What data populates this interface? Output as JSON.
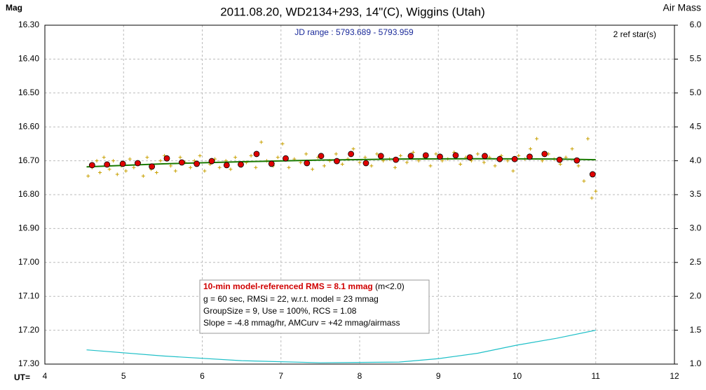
{
  "chart_data": {
    "type": "scatter",
    "title": "2011.08.20, WD2134+293, 14\"(C), Wiggins (Utah)",
    "y_label": "Mag",
    "y2_label": "Air Mass",
    "x_label": "UT=",
    "jd_range": "JD range : 5793.689 - 5793.959",
    "ref_stars": "2 ref star(s)",
    "stats_title": "10-min model-referenced RMS = 8.1 mmag",
    "stats_note": "(m<2.0)",
    "stats_lines": [
      "g = 60 sec, RMSi = 22, w.r.t. model = 23 mmag",
      "GroupSize = 9, Use = 100%, RCS = 1.08",
      "Slope = -4.8 mmag/hr, AMCurv = +42 mmag/airmass"
    ],
    "xlim": [
      4,
      12
    ],
    "xticks": [
      4,
      5,
      6,
      7,
      8,
      9,
      10,
      11,
      12
    ],
    "ylim": [
      16.3,
      17.3
    ],
    "y_inverted": true,
    "yticks": [
      {
        "value": 16.3,
        "label": "16.30"
      },
      {
        "value": 16.4,
        "label": "16.40"
      },
      {
        "value": 16.5,
        "label": "16.50"
      },
      {
        "value": 16.6,
        "label": "16.60"
      },
      {
        "value": 16.7,
        "label": "16.70"
      },
      {
        "value": 16.8,
        "label": "16.80"
      },
      {
        "value": 16.9,
        "label": "16.90"
      },
      {
        "value": 17.0,
        "label": "17.00"
      },
      {
        "value": 17.1,
        "label": "17.10"
      },
      {
        "value": 17.2,
        "label": "17.20"
      },
      {
        "value": 17.3,
        "label": "17.30"
      }
    ],
    "y2lim": [
      1.0,
      6.0
    ],
    "y2ticks": [
      {
        "value": 1.0,
        "label": "1.0"
      },
      {
        "value": 1.5,
        "label": "1.5"
      },
      {
        "value": 2.0,
        "label": "2.0"
      },
      {
        "value": 2.5,
        "label": "2.5"
      },
      {
        "value": 3.0,
        "label": "3.0"
      },
      {
        "value": 3.5,
        "label": "3.5"
      },
      {
        "value": 4.0,
        "label": "4.0"
      },
      {
        "value": 4.5,
        "label": "4.5"
      },
      {
        "value": 5.0,
        "label": "5.0"
      },
      {
        "value": 5.5,
        "label": "5.5"
      },
      {
        "value": 6.0,
        "label": "6.0"
      }
    ],
    "grid": true,
    "series": [
      {
        "marker": "plus",
        "color": "#c8a000",
        "x": [
          4.55,
          4.6,
          4.66,
          4.7,
          4.75,
          4.82,
          4.87,
          4.92,
          4.97,
          5.03,
          5.08,
          5.13,
          5.2,
          5.25,
          5.3,
          5.35,
          5.42,
          5.47,
          5.52,
          5.6,
          5.66,
          5.72,
          5.78,
          5.85,
          5.9,
          5.97,
          6.03,
          6.1,
          6.16,
          6.22,
          6.3,
          6.36,
          6.42,
          6.5,
          6.56,
          6.62,
          6.68,
          6.75,
          6.82,
          6.9,
          6.96,
          7.02,
          7.1,
          7.17,
          7.25,
          7.32,
          7.4,
          7.47,
          7.55,
          7.62,
          7.7,
          7.78,
          7.85,
          7.92,
          8.0,
          8.07,
          8.15,
          8.22,
          8.3,
          8.38,
          8.45,
          8.52,
          8.6,
          8.68,
          8.75,
          8.82,
          8.9,
          8.97,
          9.05,
          9.12,
          9.2,
          9.28,
          9.35,
          9.42,
          9.5,
          9.58,
          9.65,
          9.72,
          9.8,
          9.88,
          9.95,
          10.02,
          10.1,
          10.17,
          10.25,
          10.32,
          10.4,
          10.47,
          10.55,
          10.62,
          10.7,
          10.78,
          10.85,
          10.9,
          10.95,
          11.0
        ],
        "values": [
          16.745,
          16.72,
          16.7,
          16.735,
          16.69,
          16.725,
          16.7,
          16.74,
          16.715,
          16.73,
          16.695,
          16.72,
          16.705,
          16.745,
          16.69,
          16.725,
          16.735,
          16.7,
          16.685,
          16.715,
          16.73,
          16.69,
          16.705,
          16.72,
          16.7,
          16.685,
          16.73,
          16.71,
          16.695,
          16.72,
          16.7,
          16.725,
          16.69,
          16.715,
          16.705,
          16.685,
          16.72,
          16.645,
          16.7,
          16.715,
          16.69,
          16.65,
          16.72,
          16.695,
          16.705,
          16.68,
          16.725,
          16.69,
          16.715,
          16.7,
          16.68,
          16.71,
          16.695,
          16.665,
          16.705,
          16.69,
          16.715,
          16.68,
          16.7,
          16.695,
          16.72,
          16.685,
          16.705,
          16.675,
          16.7,
          16.69,
          16.715,
          16.68,
          16.7,
          16.695,
          16.675,
          16.71,
          16.69,
          16.7,
          16.68,
          16.705,
          16.69,
          16.715,
          16.685,
          16.7,
          16.73,
          16.685,
          16.695,
          16.665,
          16.635,
          16.7,
          16.68,
          16.695,
          16.71,
          16.69,
          16.665,
          16.715,
          16.76,
          16.635,
          16.81,
          16.79
        ]
      },
      {
        "marker": "line",
        "color": "#1a7a00",
        "x": [
          4.53,
          5.5,
          6.5,
          7.5,
          8.5,
          9.5,
          10.5,
          11.0
        ],
        "values": [
          16.718,
          16.709,
          16.703,
          16.698,
          16.695,
          16.694,
          16.695,
          16.697
        ]
      },
      {
        "marker": "circle",
        "color": "#e00000",
        "x": [
          4.6,
          4.79,
          4.99,
          5.18,
          5.36,
          5.55,
          5.74,
          5.93,
          6.12,
          6.31,
          6.49,
          6.69,
          6.88,
          7.06,
          7.33,
          7.51,
          7.71,
          7.89,
          8.08,
          8.27,
          8.46,
          8.65,
          8.84,
          9.02,
          9.22,
          9.4,
          9.59,
          9.78,
          9.97,
          10.16,
          10.35,
          10.54,
          10.76,
          10.96
        ],
        "values": [
          16.713,
          16.711,
          16.709,
          16.707,
          16.717,
          16.693,
          16.705,
          16.709,
          16.701,
          16.713,
          16.711,
          16.68,
          16.709,
          16.693,
          16.707,
          16.686,
          16.701,
          16.68,
          16.707,
          16.686,
          16.697,
          16.686,
          16.684,
          16.688,
          16.684,
          16.69,
          16.686,
          16.695,
          16.695,
          16.688,
          16.68,
          16.697,
          16.699,
          16.74
        ]
      },
      {
        "marker": "line",
        "color": "#20c0c8",
        "axis": "y2",
        "x": [
          4.53,
          5.5,
          6.5,
          7.5,
          8.5,
          9.0,
          9.5,
          10.0,
          10.5,
          11.0
        ],
        "values": [
          1.21,
          1.12,
          1.05,
          1.02,
          1.03,
          1.08,
          1.16,
          1.28,
          1.38,
          1.5
        ]
      }
    ]
  }
}
